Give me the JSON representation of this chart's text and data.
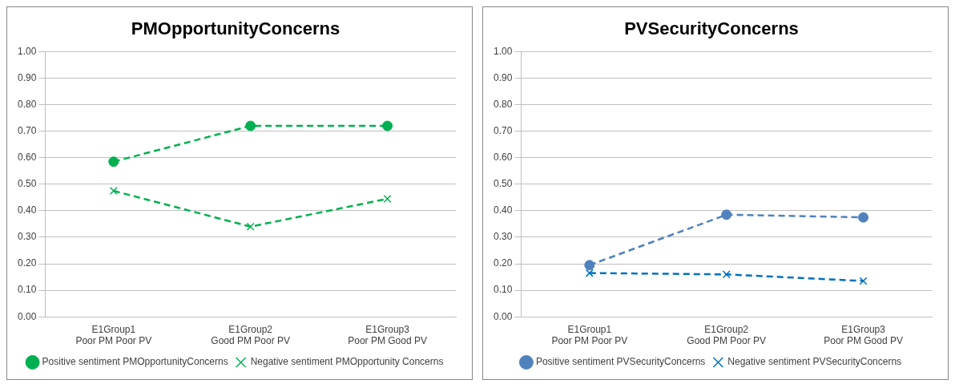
{
  "chart_data": [
    {
      "type": "line",
      "title": "PMOpportunityConcerns",
      "categories": [
        "E1Group1\nPoor PM Poor PV",
        "E1Group2\nGood PM Poor PV",
        "E1Group3\nPoor PM Good PV"
      ],
      "series": [
        {
          "name": "Positive sentiment PMOpportunityConcerns",
          "color": "#00b050",
          "values": [
            0.585,
            0.72,
            0.72
          ],
          "marker": "circle",
          "line_style": "dashed"
        },
        {
          "name": "Negative sentiment PMOpportunity Concerns",
          "color": "#00b050",
          "values": [
            0.475,
            0.34,
            0.445
          ],
          "marker": "cross",
          "line_style": "dashed"
        }
      ],
      "ylim": [
        0,
        1
      ],
      "yticks": [
        {
          "value": 0,
          "label": "0.00"
        },
        {
          "value": 0.1,
          "label": "0.10"
        },
        {
          "value": 0.2,
          "label": "0.20"
        },
        {
          "value": 0.3,
          "label": "0.30"
        },
        {
          "value": 0.4,
          "label": "0.40"
        },
        {
          "value": 0.5,
          "label": "0.50"
        },
        {
          "value": 0.6,
          "label": "0.60"
        },
        {
          "value": 0.7,
          "label": "0.70"
        },
        {
          "value": 0.8,
          "label": "0.80"
        },
        {
          "value": 0.9,
          "label": "0.90"
        },
        {
          "value": 1,
          "label": "1.00"
        }
      ],
      "grid": "y",
      "legend": "bottom"
    },
    {
      "type": "line",
      "title": "PVSecurityConcerns",
      "categories": [
        "E1Group1\nPoor PM Poor PV",
        "E1Group2\nGood PM Poor PV",
        "E1Group3\nPoor PM Good PV"
      ],
      "series": [
        {
          "name": "Positive sentiment PVSecurityConcerns",
          "color": "#4f81bd",
          "values": [
            0.195,
            0.385,
            0.375
          ],
          "marker": "circle",
          "line_style": "dashed"
        },
        {
          "name": "Negative sentiment PVSecurityConcerns",
          "color": "#0070c0",
          "values": [
            0.165,
            0.16,
            0.135
          ],
          "marker": "cross",
          "line_style": "dashed"
        }
      ],
      "ylim": [
        0,
        1
      ],
      "yticks": [
        {
          "value": 0,
          "label": "0.00"
        },
        {
          "value": 0.1,
          "label": "0.10"
        },
        {
          "value": 0.2,
          "label": "0.20"
        },
        {
          "value": 0.3,
          "label": "0.30"
        },
        {
          "value": 0.4,
          "label": "0.40"
        },
        {
          "value": 0.5,
          "label": "0.50"
        },
        {
          "value": 0.6,
          "label": "0.60"
        },
        {
          "value": 0.7,
          "label": "0.70"
        },
        {
          "value": 0.8,
          "label": "0.80"
        },
        {
          "value": 0.9,
          "label": "0.90"
        },
        {
          "value": 1,
          "label": "1.00"
        }
      ],
      "grid": "y",
      "legend": "bottom"
    }
  ]
}
